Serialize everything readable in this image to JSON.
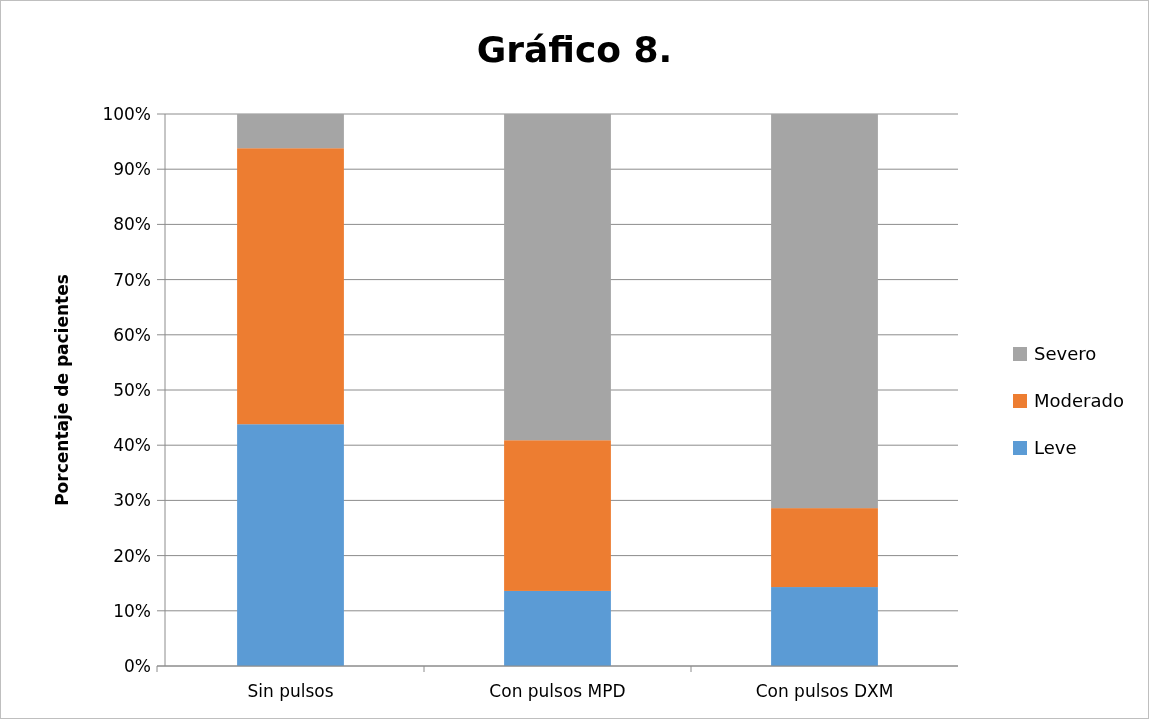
{
  "chart_data": {
    "type": "bar",
    "title": "Gráfico 8.",
    "ylabel": "Porcentaje de pacientes",
    "stacked": true,
    "categories": [
      "Sin pulsos",
      "Con pulsos MPD",
      "Con pulsos DXM"
    ],
    "series": [
      {
        "name": "Leve",
        "color": "#5b9bd5",
        "values": [
          43.8,
          13.6,
          14.3
        ]
      },
      {
        "name": "Moderado",
        "color": "#ed7d31",
        "values": [
          50,
          27.3,
          14.3
        ]
      },
      {
        "name": "Severo",
        "color": "#a5a5a5",
        "values": [
          6.2,
          59.1,
          71.4
        ]
      }
    ],
    "ylim": [
      0,
      100
    ],
    "yticks": [
      {
        "value": 0,
        "label": "0%"
      },
      {
        "value": 10,
        "label": "10%"
      },
      {
        "value": 20,
        "label": "20%"
      },
      {
        "value": 30,
        "label": "30%"
      },
      {
        "value": 40,
        "label": "40%"
      },
      {
        "value": 50,
        "label": "50%"
      },
      {
        "value": 60,
        "label": "60%"
      },
      {
        "value": 70,
        "label": "70%"
      },
      {
        "value": 80,
        "label": "80%"
      },
      {
        "value": 90,
        "label": "90%"
      },
      {
        "value": 100,
        "label": "100%"
      }
    ],
    "grid": "y",
    "legend": "right"
  }
}
